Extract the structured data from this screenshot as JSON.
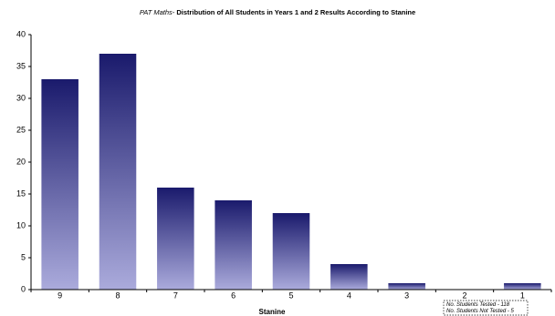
{
  "chart_data": {
    "type": "bar",
    "title_prefix": "PAT Maths-",
    "title": "Distribution of All Students in Years 1 and 2 Results According to Stanine",
    "x_label": "Stanine",
    "categories": [
      "9",
      "8",
      "7",
      "6",
      "5",
      "4",
      "3",
      "2",
      "1"
    ],
    "values": [
      33,
      37,
      16,
      14,
      12,
      4,
      1,
      0,
      1
    ],
    "color": "#1a1a6c",
    "color_light": "#ababdc",
    "ylim": [
      0,
      40
    ],
    "yticks": [
      0,
      5,
      10,
      15,
      20,
      25,
      30,
      35,
      40
    ],
    "grid": false,
    "annotations": [
      "No. Students Tested -  118",
      "No. Students Not Tested - 5"
    ]
  }
}
